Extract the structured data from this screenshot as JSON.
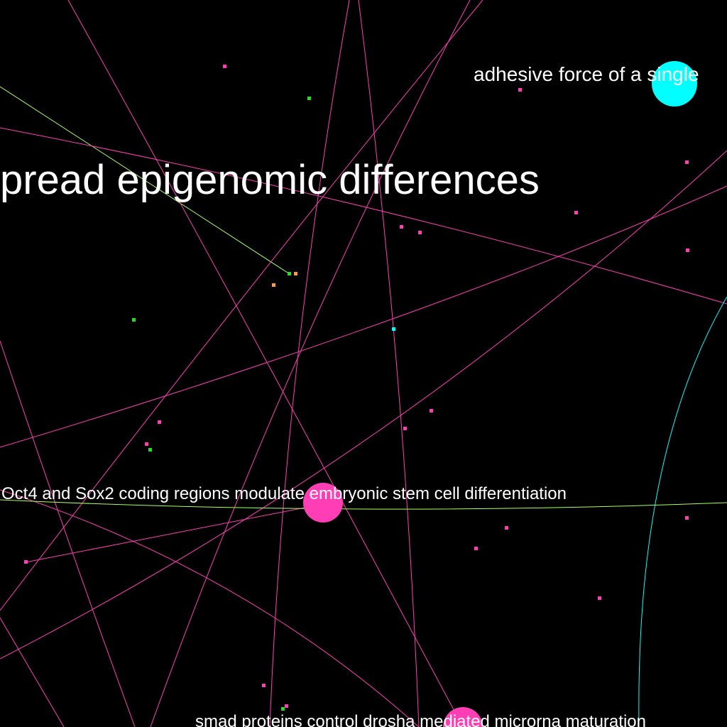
{
  "canvas": {
    "background": "#000000"
  },
  "colors": {
    "pink": "#ff3eb5",
    "cyan": "#00ffff",
    "green": "#22dd22",
    "orange": "#ff9944",
    "lime": "#aaff66",
    "label": "#ffffff"
  },
  "labels": {
    "epigenomic": "pread epigenomic differences",
    "oct4": "Oct4 and Sox2 coding regions modulate embryonic stem cell differentiation",
    "adhesive": "adhesive force of a single",
    "smad": "smad proteins control drosha mediated microrna maturation"
  }
}
